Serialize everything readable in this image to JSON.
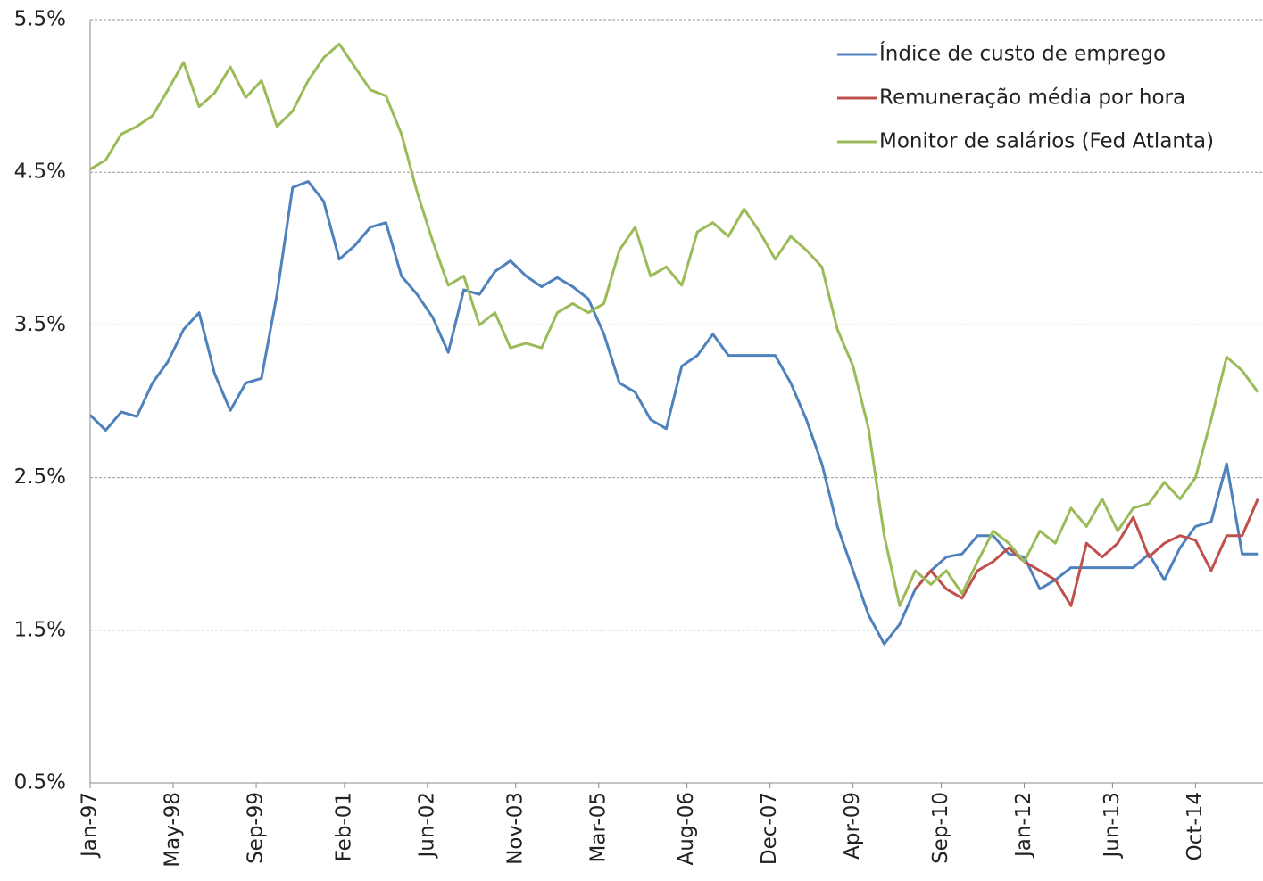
{
  "chart_data": {
    "type": "line",
    "x": [
      "Jan-97",
      "Apr-97",
      "Jul-97",
      "Oct-97",
      "Jan-98",
      "Apr-98",
      "Jul-98",
      "Oct-98",
      "Jan-99",
      "Apr-99",
      "Jul-99",
      "Oct-99",
      "Jan-00",
      "Apr-00",
      "Jul-00",
      "Oct-00",
      "Jan-01",
      "Apr-01",
      "Jul-01",
      "Oct-01",
      "Jan-02",
      "Apr-02",
      "Jul-02",
      "Oct-02",
      "Jan-03",
      "Apr-03",
      "Jul-03",
      "Oct-03",
      "Jan-04",
      "Apr-04",
      "Jul-04",
      "Oct-04",
      "Jan-05",
      "Apr-05",
      "Jul-05",
      "Oct-05",
      "Jan-06",
      "Apr-06",
      "Jul-06",
      "Oct-06",
      "Jan-07",
      "Apr-07",
      "Jul-07",
      "Oct-07",
      "Jan-08",
      "Apr-08",
      "Jul-08",
      "Oct-08",
      "Jan-09",
      "Apr-09",
      "Jul-09",
      "Oct-09",
      "Jan-10",
      "Apr-10",
      "Jul-10",
      "Oct-10",
      "Jan-11",
      "Apr-11",
      "Jul-11",
      "Oct-11",
      "Jan-12",
      "Apr-12",
      "Jul-12",
      "Oct-12",
      "Jan-13",
      "Apr-13",
      "Jul-13",
      "Oct-13",
      "Jan-14",
      "Apr-14",
      "Jul-14",
      "Oct-14",
      "Jan-15",
      "Apr-15",
      "Jul-15",
      "Oct-15"
    ],
    "series": [
      {
        "name": "Índice de custo de emprego",
        "color": "#4f81bd",
        "values": [
          2.91,
          2.81,
          2.93,
          2.9,
          3.12,
          3.26,
          3.47,
          3.58,
          3.18,
          2.94,
          3.12,
          3.15,
          3.7,
          4.4,
          4.44,
          4.31,
          3.93,
          4.02,
          4.14,
          4.17,
          3.82,
          3.7,
          3.55,
          3.32,
          3.73,
          3.7,
          3.85,
          3.92,
          3.82,
          3.75,
          3.81,
          3.75,
          3.67,
          3.44,
          3.12,
          3.06,
          2.88,
          2.82,
          3.23,
          3.3,
          3.44,
          3.3,
          3.3,
          3.3,
          3.3,
          3.12,
          2.88,
          2.59,
          2.18,
          1.89,
          1.6,
          1.41,
          1.54,
          1.77,
          1.89,
          1.98,
          2.0,
          2.12,
          2.12,
          2.0,
          1.98,
          1.77,
          1.83,
          1.91,
          1.91,
          1.91,
          1.91,
          1.91,
          2.0,
          1.83,
          2.04,
          2.18,
          2.21,
          2.59,
          2.0,
          2.0
        ]
      },
      {
        "name": "Remuneração média por hora",
        "color": "#c0504d",
        "values": [
          null,
          null,
          null,
          null,
          null,
          null,
          null,
          null,
          null,
          null,
          null,
          null,
          null,
          null,
          null,
          null,
          null,
          null,
          null,
          null,
          null,
          null,
          null,
          null,
          null,
          null,
          null,
          null,
          null,
          null,
          null,
          null,
          null,
          null,
          null,
          null,
          null,
          null,
          null,
          null,
          null,
          null,
          null,
          null,
          null,
          null,
          null,
          null,
          null,
          null,
          null,
          null,
          null,
          1.77,
          1.89,
          1.77,
          1.71,
          1.89,
          1.95,
          2.04,
          1.95,
          1.89,
          1.83,
          1.66,
          2.07,
          1.98,
          2.07,
          2.24,
          1.98,
          2.07,
          2.12,
          2.09,
          1.89,
          2.12,
          2.12,
          2.36
        ]
      },
      {
        "name": "Monitor de salários (Fed Atlanta)",
        "color": "#9bbb59",
        "values": [
          4.52,
          4.58,
          4.75,
          4.8,
          4.87,
          5.04,
          5.22,
          4.93,
          5.02,
          5.19,
          4.99,
          5.1,
          4.8,
          4.9,
          5.1,
          5.25,
          5.34,
          5.19,
          5.04,
          5.0,
          4.75,
          4.37,
          4.05,
          3.76,
          3.82,
          3.5,
          3.58,
          3.35,
          3.38,
          3.35,
          3.58,
          3.64,
          3.58,
          3.64,
          3.99,
          4.14,
          3.82,
          3.88,
          3.76,
          4.11,
          4.17,
          4.08,
          4.26,
          4.11,
          3.93,
          4.08,
          3.99,
          3.88,
          3.47,
          3.23,
          2.82,
          2.12,
          1.66,
          1.89,
          1.8,
          1.89,
          1.74,
          1.95,
          2.15,
          2.07,
          1.95,
          2.15,
          2.07,
          2.3,
          2.18,
          2.36,
          2.15,
          2.3,
          2.33,
          2.47,
          2.36,
          2.5,
          2.88,
          3.29,
          3.2,
          3.06
        ]
      }
    ],
    "xlim": [
      "Jan-97",
      "Nov-15"
    ],
    "xticks": [
      "Jan-97",
      "May-98",
      "Sep-99",
      "Feb-01",
      "Jun-02",
      "Nov-03",
      "Mar-05",
      "Aug-06",
      "Dec-07",
      "Apr-09",
      "Sep-10",
      "Jan-12",
      "Jun-13",
      "Oct-14"
    ],
    "ylim": [
      0.5,
      5.5
    ],
    "yticks": [
      {
        "value": 0.5,
        "label": "0.5%"
      },
      {
        "value": 1.5,
        "label": "1.5%"
      },
      {
        "value": 2.5,
        "label": "2.5%"
      },
      {
        "value": 3.5,
        "label": "3.5%"
      },
      {
        "value": 4.5,
        "label": "4.5%"
      },
      {
        "value": 5.5,
        "label": "5.5%"
      }
    ],
    "grid": true,
    "legend": "upper right"
  }
}
